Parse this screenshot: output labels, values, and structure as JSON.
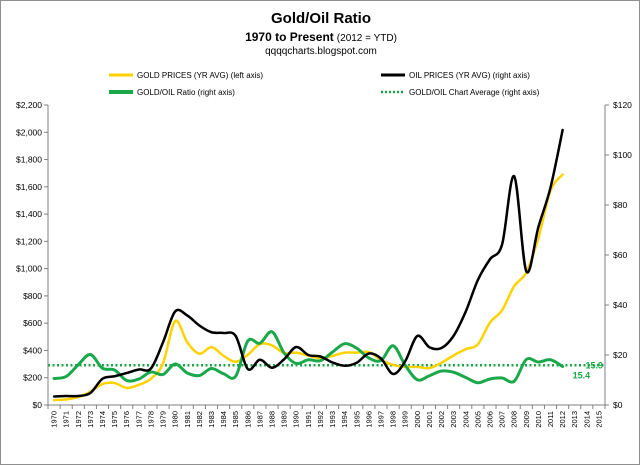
{
  "chart_data": {
    "type": "line",
    "title": "Gold/Oil  Ratio",
    "subtitle_main": "1970 to Present",
    "subtitle_note": "(2012 = YTD)",
    "source": "qqqqcharts.blogspot.com",
    "left_axis": {
      "range": [
        0,
        2200
      ],
      "ticks": [
        0,
        200,
        400,
        600,
        800,
        1000,
        1200,
        1400,
        1600,
        1800,
        2000,
        2200
      ],
      "tick_labels": [
        "$0",
        "$200",
        "$400",
        "$600",
        "$800",
        "$1,000",
        "$1,200",
        "$1,400",
        "$1,600",
        "$1,800",
        "$2,000",
        "$2,200"
      ]
    },
    "right_axis": {
      "range": [
        0,
        120
      ],
      "ticks": [
        0,
        20,
        40,
        60,
        80,
        100,
        120
      ],
      "tick_labels": [
        "$0",
        "$20",
        "$40",
        "$60",
        "$80",
        "$100",
        "$120"
      ]
    },
    "x_years": [
      1970,
      1971,
      1972,
      1973,
      1974,
      1975,
      1976,
      1977,
      1978,
      1979,
      1980,
      1981,
      1982,
      1983,
      1984,
      1985,
      1986,
      1987,
      1988,
      1989,
      1990,
      1991,
      1992,
      1993,
      1994,
      1995,
      1996,
      1997,
      1998,
      1999,
      2000,
      2001,
      2002,
      2003,
      2004,
      2005,
      2006,
      2007,
      2008,
      2009,
      2010,
      2011,
      2012,
      2013,
      2014,
      2015
    ],
    "x_tick_labels": [
      "1970",
      "1971",
      "1972",
      "1973",
      "1974",
      "1975",
      "1976",
      "1977",
      "1978",
      "1979",
      "1980",
      "1981",
      "1982",
      "1983",
      "1984",
      "1985",
      "1986",
      "1987",
      "1988",
      "1989",
      "1990",
      "1991",
      "1992",
      "1993",
      "1994",
      "1995",
      "1996",
      "1997",
      "1998",
      "1999",
      "2000",
      "2001",
      "2002",
      "2003",
      "2004",
      "2005",
      "2006",
      "2007",
      "2008",
      "2009",
      "2010",
      "2011",
      "2012",
      "2013",
      "2014",
      "2015"
    ],
    "legend": {
      "gold": "GOLD PRICES (YR AVG) (left axis)",
      "oil": "OIL PRICES (YR AVG) (right axis)",
      "ratio": "GOLD/OIL Ratio  (right axis)",
      "average": "GOLD/OIL Chart Average (right axis)"
    },
    "series": [
      {
        "key": "gold",
        "axis": "left",
        "color": "#ffd200",
        "width": 2.5,
        "values": [
          36,
          41,
          58,
          97,
          154,
          161,
          125,
          148,
          193,
          306,
          615,
          460,
          376,
          424,
          361,
          317,
          368,
          447,
          437,
          381,
          384,
          362,
          344,
          360,
          384,
          384,
          388,
          331,
          294,
          279,
          279,
          271,
          310,
          364,
          410,
          445,
          604,
          695,
          872,
          972,
          1225,
          1572,
          1690
        ]
      },
      {
        "key": "oil",
        "axis": "right",
        "color": "#000000",
        "width": 2.5,
        "values": [
          3.4,
          3.6,
          3.6,
          4.8,
          10.5,
          11.5,
          12.8,
          14.2,
          14.6,
          25.1,
          37.4,
          35.8,
          31.8,
          29.1,
          28.8,
          27.6,
          14.4,
          18.1,
          14.9,
          18.3,
          23.2,
          20.0,
          19.4,
          17.0,
          15.7,
          16.9,
          20.6,
          18.6,
          12.4,
          17.5,
          27.6,
          23.1,
          22.8,
          27.7,
          37.4,
          50.0,
          58.3,
          64.2,
          91.5,
          53.5,
          71.2,
          87.0,
          110.0
        ]
      },
      {
        "key": "ratio",
        "axis": "right",
        "color": "#1aa84a",
        "width": 3,
        "values": [
          10.6,
          11.4,
          16.1,
          20.2,
          14.7,
          14.0,
          9.8,
          10.4,
          13.2,
          12.2,
          16.4,
          12.8,
          11.8,
          14.6,
          12.5,
          11.5,
          25.6,
          24.7,
          29.3,
          20.8,
          16.6,
          18.1,
          17.7,
          21.2,
          24.5,
          22.7,
          18.8,
          17.8,
          23.7,
          15.9,
          10.1,
          11.7,
          13.6,
          13.1,
          11.0,
          8.9,
          10.4,
          10.8,
          9.5,
          18.2,
          17.2,
          18.1,
          15.4
        ]
      }
    ],
    "average": {
      "value": 15.9,
      "axis": "right",
      "color": "#18a845",
      "style": "dotted"
    },
    "annotations": [
      {
        "text": "15.9",
        "color": "#18a845"
      },
      {
        "text": "15.4",
        "color": "#18a845"
      }
    ],
    "grid": false,
    "legend_placement": "top"
  }
}
